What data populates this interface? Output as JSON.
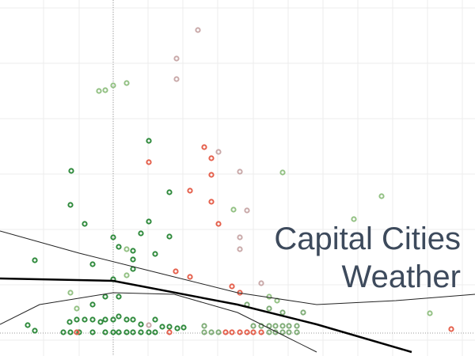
{
  "chart_data": {
    "type": "scatter",
    "title": "Capital Cities Weather",
    "xlim": [
      0,
      600
    ],
    "ylim": [
      0,
      450
    ],
    "xticks": [
      55,
      100,
      143,
      187,
      231,
      275,
      320,
      364,
      408,
      452,
      496,
      540,
      584
    ],
    "yticks": [
      20,
      90,
      160,
      230,
      300,
      370,
      440
    ],
    "grid": true,
    "xref": 143,
    "yref": 29,
    "series": [
      {
        "color": "#c9a9a9",
        "x": [
          250,
          223,
          223,
          276,
          303,
          312,
          303,
          303,
          330,
          188
        ],
        "values": [
          412,
          376,
          350,
          258,
          233,
          184,
          150,
          135,
          92,
          39
        ]
      },
      {
        "color": "#93c184",
        "x": [
          125,
          133,
          143,
          160,
          357,
          482,
          447,
          295,
          160,
          160,
          89,
          97,
          340,
          350,
          543
        ],
        "values": [
          335,
          336,
          342,
          345,
          232,
          202,
          173,
          185,
          135,
          102,
          80,
          60,
          75,
          70,
          54
        ]
      },
      {
        "color": "#2f8a3c",
        "x": [
          90,
          89,
          107,
          44,
          143,
          150,
          168,
          168,
          168,
          178,
          188,
          188,
          214,
          214,
          196,
          117,
          143,
          133,
          150,
          117,
          88,
          97,
          107,
          117,
          127,
          133,
          143,
          150,
          160,
          168,
          178,
          196,
          205,
          214,
          224,
          232,
          35,
          44,
          80,
          89,
          100,
          117,
          133,
          143,
          150,
          160,
          168,
          178,
          188,
          196
        ],
        "values": [
          234,
          191,
          167,
          121,
          150,
          138,
          133,
          122,
          110,
          155,
          170,
          272,
          207,
          151,
          129,
          116,
          97,
          75,
          75,
          65,
          43,
          46,
          46,
          46,
          43,
          46,
          46,
          50,
          46,
          46,
          40,
          46,
          37,
          37,
          35,
          36,
          39,
          32,
          30,
          30,
          30,
          30,
          30,
          30,
          30,
          30,
          30,
          30,
          30,
          30
        ]
      },
      {
        "color": "#e5604c",
        "x": [
          258,
          267,
          188,
          267,
          240,
          267,
          276,
          222,
          240,
          293,
          303,
          97,
          214,
          285,
          293,
          303,
          312,
          320,
          330,
          570
        ],
        "values": [
          264,
          250,
          245,
          229,
          209,
          195,
          167,
          107,
          100,
          88,
          80,
          30,
          30,
          30,
          30,
          30,
          30,
          30,
          30,
          34
        ]
      },
      {
        "color": "#80ad78",
        "x": [
          258,
          267,
          276,
          320,
          330,
          340,
          348,
          357,
          365,
          375,
          340,
          348,
          357,
          365,
          375,
          312,
          340,
          357,
          383,
          258
        ],
        "values": [
          38,
          30,
          30,
          38,
          38,
          38,
          38,
          38,
          38,
          38,
          30,
          30,
          30,
          30,
          30,
          65,
          60,
          55,
          55,
          30
        ]
      }
    ],
    "lines": [
      {
        "color": "#000000",
        "width": 2.5,
        "x": [
          0,
          143,
          300,
          400,
          520
        ],
        "values": [
          98,
          95,
          65,
          40,
          5
        ]
      },
      {
        "color": "#222222",
        "width": 1,
        "x": [
          0,
          100,
          200,
          300,
          400,
          500,
          600
        ],
        "values": [
          158,
          130,
          105,
          80,
          65,
          70,
          78
        ]
      },
      {
        "color": "#222222",
        "width": 1,
        "x": [
          0,
          50,
          143,
          220,
          300,
          350,
          400
        ],
        "values": [
          40,
          65,
          80,
          78,
          55,
          30,
          5
        ]
      }
    ]
  }
}
